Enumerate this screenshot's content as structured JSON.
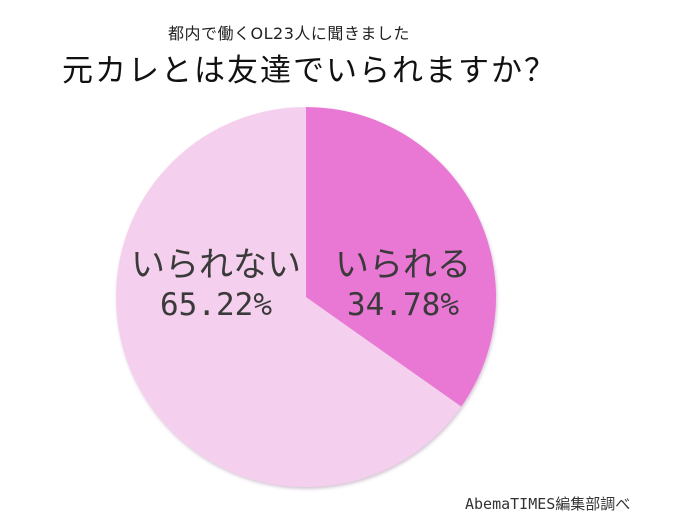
{
  "header": {
    "subtitle": "都内で働くOL23人に聞きました",
    "title": "元カレとは友達でいられますか？"
  },
  "credit": "AbemaTIMES編集部調べ",
  "colors": {
    "can": "#e878d4",
    "cannot": "#f5d0ee",
    "outline": "#c8a8c4"
  },
  "chart_data": {
    "type": "pie",
    "title": "元カレとは友達でいられますか？",
    "subtitle": "都内で働くOL23人に聞きました",
    "categories": [
      "いられる",
      "いられない"
    ],
    "values": [
      34.78,
      65.22
    ],
    "unit": "%",
    "labels": [
      {
        "category": "いられる",
        "text": "34.78%"
      },
      {
        "category": "いられない",
        "text": "65.22%"
      }
    ],
    "start_angle": "12 o'clock, clockwise",
    "legend": "none (inline labels)",
    "source": "AbemaTIMES編集部調べ"
  },
  "slices": [
    {
      "label": "いられる",
      "pct": "34.78%"
    },
    {
      "label": "いられない",
      "pct": "65.22%"
    }
  ]
}
